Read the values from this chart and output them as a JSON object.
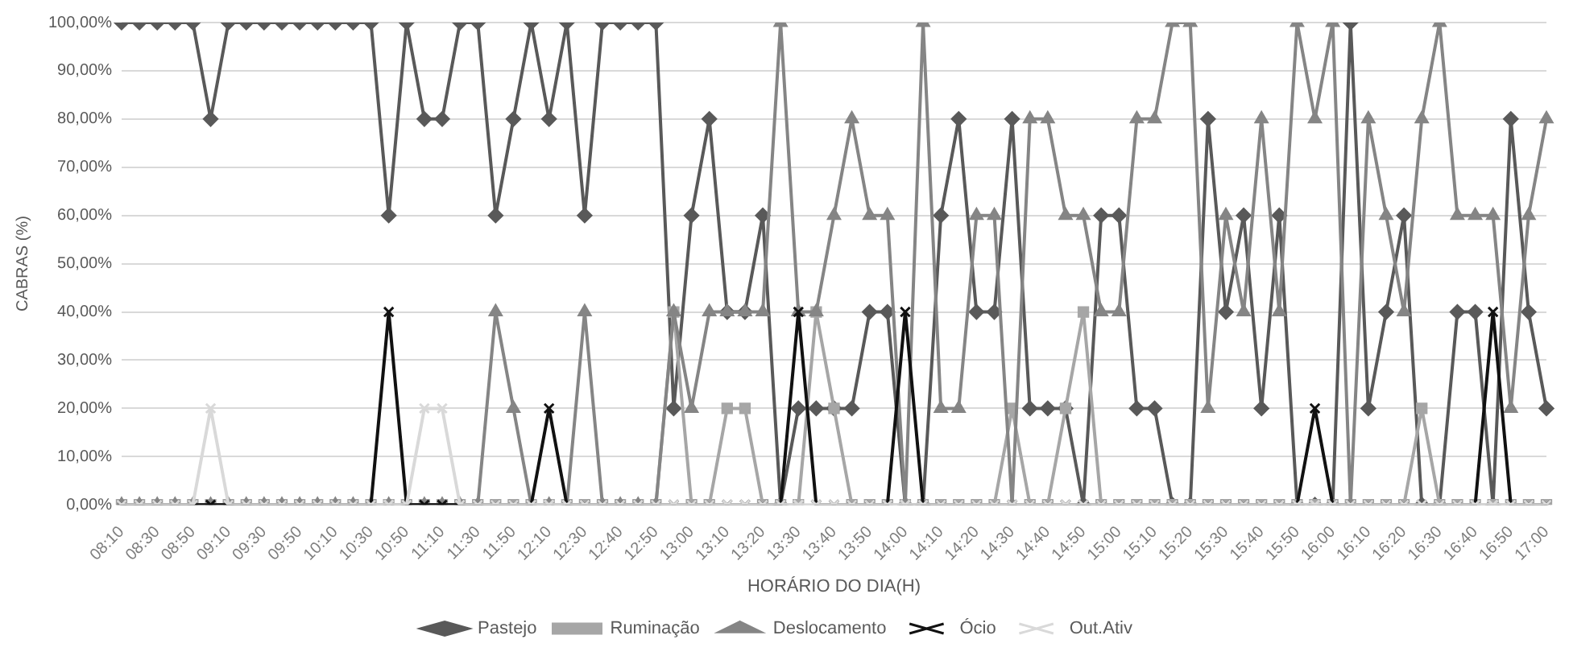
{
  "chart_data": {
    "type": "line",
    "xlabel": "HORÁRIO DO DIA(H)",
    "ylabel": "CABRAS (%)",
    "categories": [
      "08:10",
      null,
      "08:30",
      null,
      "08:50",
      null,
      "09:10",
      null,
      "09:30",
      null,
      "09:50",
      null,
      "10:10",
      null,
      "10:30",
      null,
      "10:50",
      null,
      "11:10",
      null,
      "11:30",
      null,
      "11:50",
      null,
      "12:10",
      null,
      "12:30",
      null,
      "12:40",
      null,
      "12:50",
      null,
      "13:00",
      null,
      "13:10",
      null,
      "13:20",
      null,
      "13:30",
      null,
      "13:40",
      null,
      "13:50",
      null,
      "14:00",
      null,
      "14:10",
      null,
      "14:20",
      null,
      "14:30",
      null,
      "14:40",
      null,
      "14:50",
      null,
      "15:00",
      null,
      "15:10",
      null,
      "15:20",
      null,
      "15:30",
      null,
      "15:40",
      null,
      "15:50",
      null,
      "16:00",
      null,
      "16:10",
      null,
      "16:20",
      null,
      "16:30",
      null,
      "16:40",
      null,
      "16:50",
      null,
      "17:00"
    ],
    "series": [
      {
        "name": "Pastejo",
        "color": "#595959",
        "marker": "diamond",
        "values": [
          100,
          100,
          100,
          100,
          100,
          80,
          100,
          100,
          100,
          100,
          100,
          100,
          100,
          100,
          100,
          60,
          100,
          80,
          80,
          100,
          100,
          60,
          80,
          100,
          80,
          100,
          60,
          100,
          100,
          100,
          100,
          20,
          60,
          80,
          40,
          40,
          60,
          0,
          20,
          20,
          20,
          20,
          40,
          40,
          0,
          0,
          60,
          80,
          40,
          40,
          80,
          20,
          20,
          20,
          0,
          60,
          60,
          20,
          20,
          0,
          0,
          80,
          40,
          60,
          20,
          60,
          0,
          0,
          0,
          100,
          20,
          40,
          60,
          0,
          0,
          40,
          40,
          0,
          80,
          40,
          20
        ]
      },
      {
        "name": "Ruminação",
        "color": "#a6a6a6",
        "marker": "square",
        "values": [
          0,
          0,
          0,
          0,
          0,
          0,
          0,
          0,
          0,
          0,
          0,
          0,
          0,
          0,
          0,
          0,
          0,
          0,
          0,
          0,
          0,
          0,
          0,
          0,
          0,
          0,
          0,
          0,
          0,
          0,
          0,
          40,
          0,
          0,
          20,
          20,
          0,
          0,
          0,
          40,
          20,
          0,
          0,
          0,
          0,
          0,
          0,
          0,
          0,
          0,
          20,
          0,
          0,
          20,
          40,
          0,
          0,
          0,
          0,
          0,
          0,
          0,
          0,
          0,
          0,
          0,
          0,
          0,
          0,
          0,
          0,
          0,
          0,
          20,
          0,
          0,
          0,
          0,
          0,
          0,
          0
        ]
      },
      {
        "name": "Deslocamento",
        "color": "#858585",
        "marker": "triangle",
        "values": [
          0,
          0,
          0,
          0,
          0,
          0,
          0,
          0,
          0,
          0,
          0,
          0,
          0,
          0,
          0,
          0,
          0,
          0,
          0,
          0,
          0,
          40,
          20,
          0,
          0,
          0,
          40,
          0,
          0,
          0,
          0,
          40,
          20,
          40,
          40,
          40,
          40,
          100,
          40,
          40,
          60,
          80,
          60,
          60,
          0,
          100,
          20,
          20,
          60,
          60,
          0,
          80,
          80,
          60,
          60,
          40,
          40,
          80,
          80,
          100,
          100,
          20,
          60,
          40,
          80,
          40,
          100,
          80,
          100,
          0,
          80,
          60,
          40,
          80,
          100,
          60,
          60,
          60,
          20,
          60,
          80
        ]
      },
      {
        "name": "Ócio",
        "color": "#111111",
        "marker": "cross",
        "values": [
          0,
          0,
          0,
          0,
          0,
          0,
          0,
          0,
          0,
          0,
          0,
          0,
          0,
          0,
          0,
          40,
          0,
          0,
          0,
          0,
          0,
          0,
          0,
          0,
          20,
          0,
          0,
          0,
          0,
          0,
          0,
          0,
          0,
          0,
          0,
          0,
          0,
          0,
          40,
          0,
          0,
          0,
          0,
          0,
          40,
          0,
          0,
          0,
          0,
          0,
          0,
          0,
          0,
          0,
          0,
          0,
          0,
          0,
          0,
          0,
          0,
          0,
          0,
          0,
          0,
          0,
          0,
          20,
          0,
          0,
          0,
          0,
          0,
          0,
          0,
          0,
          0,
          40,
          0,
          0,
          0
        ]
      },
      {
        "name": "Out.Ativ",
        "color": "#d9d9d9",
        "marker": "cross",
        "values": [
          0,
          0,
          0,
          0,
          0,
          20,
          0,
          0,
          0,
          0,
          0,
          0,
          0,
          0,
          0,
          0,
          0,
          20,
          20,
          0,
          0,
          0,
          0,
          0,
          0,
          0,
          0,
          0,
          0,
          0,
          0,
          0,
          0,
          0,
          0,
          0,
          0,
          0,
          0,
          0,
          0,
          0,
          0,
          0,
          0,
          0,
          0,
          0,
          0,
          0,
          0,
          0,
          0,
          0,
          0,
          0,
          0,
          0,
          0,
          0,
          0,
          0,
          0,
          0,
          0,
          0,
          0,
          0,
          0,
          0,
          0,
          0,
          0,
          0,
          0,
          0,
          0,
          0,
          0,
          0,
          0
        ]
      }
    ],
    "ylim": [
      0,
      100
    ],
    "yticks": [
      {
        "value": 0,
        "label": "0,00%"
      },
      {
        "value": 10,
        "label": "10,00%"
      },
      {
        "value": 20,
        "label": "20,00%"
      },
      {
        "value": 30,
        "label": "30,00%"
      },
      {
        "value": 40,
        "label": "40,00%"
      },
      {
        "value": 50,
        "label": "50,00%"
      },
      {
        "value": 60,
        "label": "60,00%"
      },
      {
        "value": 70,
        "label": "70,00%"
      },
      {
        "value": 80,
        "label": "80,00%"
      },
      {
        "value": 90,
        "label": "90,00%"
      },
      {
        "value": 100,
        "label": "100,00%"
      }
    ],
    "grid": "y",
    "legend": "bottom",
    "line_style": "solid"
  }
}
